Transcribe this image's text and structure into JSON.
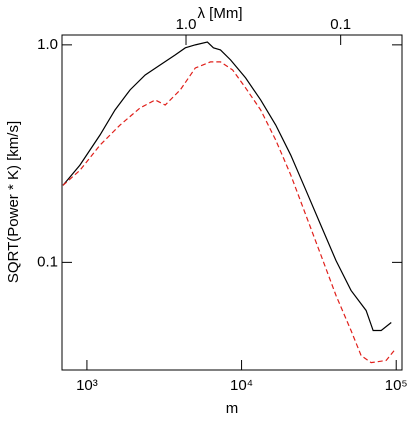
{
  "chart_data": {
    "type": "line",
    "xlabel": "m",
    "ylabel": "SQRT(Power * K)  [km/s]",
    "x2label": "λ  [Mm]",
    "xscale": "log",
    "yscale": "log",
    "xlim": [
      690,
      109000
    ],
    "ylim": [
      0.032,
      1.11
    ],
    "xticks": [
      {
        "value": 1000,
        "label": "10³"
      },
      {
        "value": 10000,
        "label": "10⁴"
      },
      {
        "value": 100000,
        "label": "10⁵"
      }
    ],
    "yticks": [
      {
        "value": 0.1,
        "label": "0.1"
      },
      {
        "value": 1,
        "label": "1.0"
      }
    ],
    "x2ticks": [
      {
        "value": 4373,
        "label": "1.0"
      },
      {
        "value": 43730,
        "label": "0.1"
      }
    ],
    "series": [
      {
        "color": "#000000",
        "dash": "solid",
        "x": [
          700,
          901,
          1215,
          1519,
          1902,
          2381,
          2981,
          3727,
          4328,
          5023,
          6012,
          6577,
          7303,
          8485,
          10620,
          13290,
          16630,
          20810,
          26040,
          32590,
          40780,
          51040,
          63870,
          70930,
          79940,
          92890
        ],
        "values": [
          0.226,
          0.28,
          0.385,
          0.502,
          0.621,
          0.727,
          0.809,
          0.899,
          0.969,
          1.0,
          1.03,
          0.969,
          0.948,
          0.853,
          0.705,
          0.558,
          0.428,
          0.311,
          0.215,
          0.148,
          0.102,
          0.0743,
          0.0601,
          0.0486,
          0.0486,
          0.0529
        ]
      },
      {
        "color": "#e0201b",
        "dash": "dashed",
        "x": [
          700,
          901,
          1215,
          1638,
          2208,
          2766,
          3208,
          4016,
          5023,
          6293,
          7303,
          8750,
          10620,
          13290,
          16630,
          20810,
          26040,
          32590,
          40780,
          51040,
          59290,
          68870,
          86060,
          96990
        ],
        "values": [
          0.226,
          0.265,
          0.346,
          0.428,
          0.513,
          0.558,
          0.529,
          0.621,
          0.783,
          0.835,
          0.835,
          0.767,
          0.634,
          0.502,
          0.365,
          0.252,
          0.165,
          0.108,
          0.0705,
          0.0486,
          0.0373,
          0.0346,
          0.0354,
          0.0393
        ]
      }
    ]
  }
}
